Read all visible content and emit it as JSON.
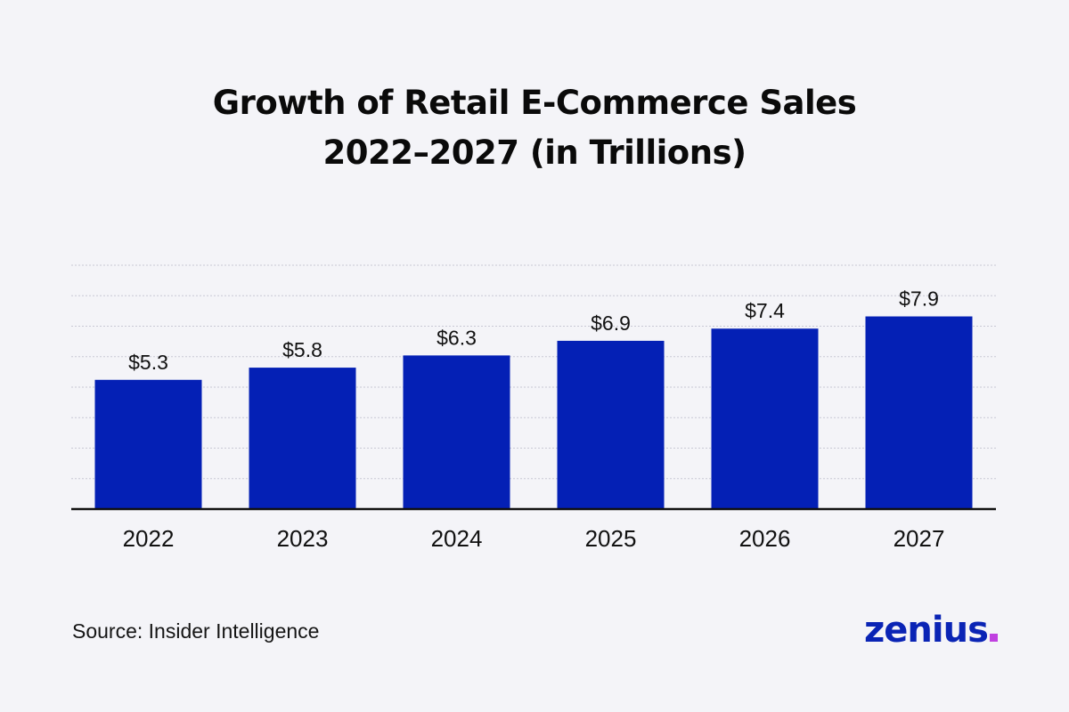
{
  "title": {
    "line1": "Growth of Retail E-Commerce Sales",
    "line2": "2022–2027 (in Trillions)"
  },
  "source": "Source: Insider Intelligence",
  "logo": {
    "text": "zenius",
    "dot_color": "#c040e0",
    "color": "#0a24b5"
  },
  "colors": {
    "bar": "#0420b5",
    "background": "#f4f4f8",
    "gridline": "#c8c8d4",
    "axis": "#111111"
  },
  "chart_data": {
    "type": "bar",
    "categories": [
      "2022",
      "2023",
      "2024",
      "2025",
      "2026",
      "2027"
    ],
    "values": [
      5.3,
      5.8,
      6.3,
      6.9,
      7.4,
      7.9
    ],
    "data_labels": [
      "$5.3",
      "$5.8",
      "$6.3",
      "$6.9",
      "$7.4",
      "$7.9"
    ],
    "title": "Growth of Retail E-Commerce Sales 2022–2027 (in Trillions)",
    "xlabel": "",
    "ylabel": "",
    "ylim": [
      0,
      10
    ],
    "grid": true,
    "legend": "none"
  }
}
